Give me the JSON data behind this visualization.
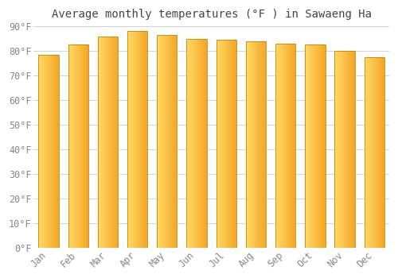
{
  "title": "Average monthly temperatures (°F ) in Sawaeng Ha",
  "months": [
    "Jan",
    "Feb",
    "Mar",
    "Apr",
    "May",
    "Jun",
    "Jul",
    "Aug",
    "Sep",
    "Oct",
    "Nov",
    "Dec"
  ],
  "values": [
    78.5,
    82.5,
    86.0,
    88.0,
    86.5,
    85.0,
    84.5,
    84.0,
    83.0,
    82.5,
    80.0,
    77.5
  ],
  "bar_color_left": "#FFD966",
  "bar_color_right": "#F5A623",
  "bar_edge_color": "#C8850A",
  "ylim": [
    0,
    90
  ],
  "yticks": [
    0,
    10,
    20,
    30,
    40,
    50,
    60,
    70,
    80,
    90
  ],
  "ytick_labels": [
    "0°F",
    "10°F",
    "20°F",
    "30°F",
    "40°F",
    "50°F",
    "60°F",
    "70°F",
    "80°F",
    "90°F"
  ],
  "background_color": "#FFFFFF",
  "plot_bg_color": "#FFFFFF",
  "grid_color": "#CCCCCC",
  "title_fontsize": 10,
  "tick_fontsize": 8.5,
  "font_color": "#888888",
  "title_color": "#444444"
}
